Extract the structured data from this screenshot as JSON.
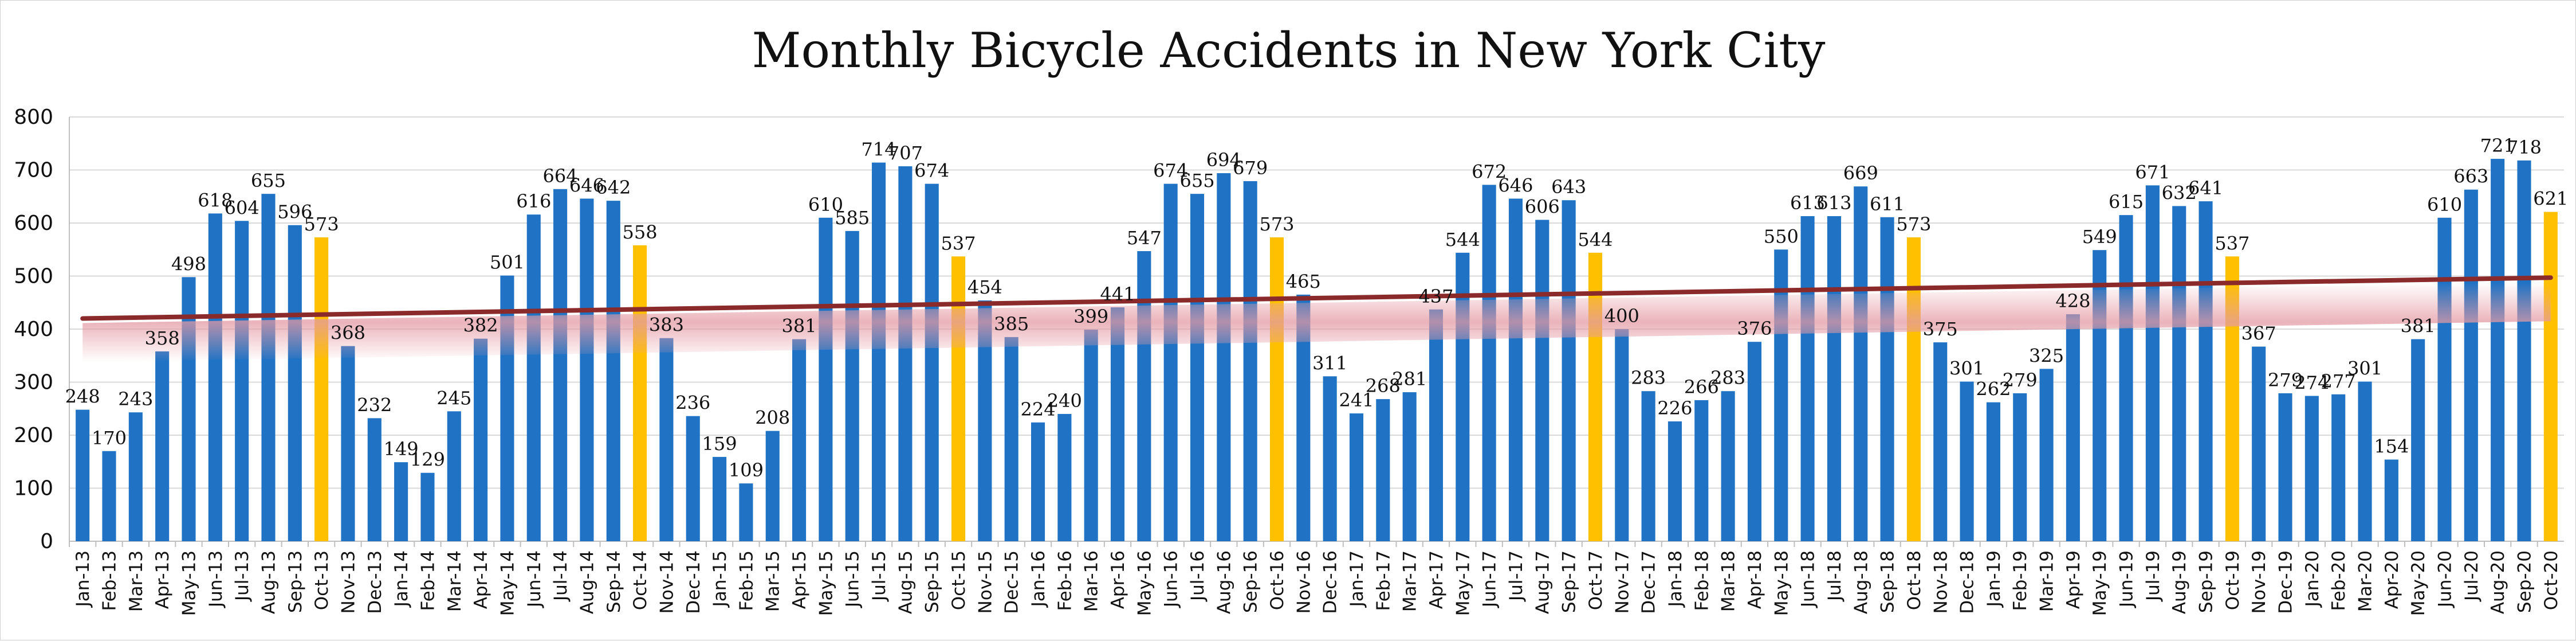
{
  "chart_data": {
    "type": "bar",
    "title": "Monthly Bicycle Accidents in New York City",
    "xlabel": "",
    "ylabel": "",
    "ylim": [
      0,
      800
    ],
    "yticks": [
      0,
      100,
      200,
      300,
      400,
      500,
      600,
      700,
      800
    ],
    "grid": true,
    "legend": "none",
    "colors": {
      "bar": "#1f72c4",
      "highlight": "#ffc000",
      "trend": "#8b2a2a",
      "grid": "#d9d9d9"
    },
    "categories": [
      "Jan-13",
      "Feb-13",
      "Mar-13",
      "Apr-13",
      "May-13",
      "Jun-13",
      "Jul-13",
      "Aug-13",
      "Sep-13",
      "Oct-13",
      "Nov-13",
      "Dec-13",
      "Jan-14",
      "Feb-14",
      "Mar-14",
      "Apr-14",
      "May-14",
      "Jun-14",
      "Jul-14",
      "Aug-14",
      "Sep-14",
      "Oct-14",
      "Nov-14",
      "Dec-14",
      "Jan-15",
      "Feb-15",
      "Mar-15",
      "Apr-15",
      "May-15",
      "Jun-15",
      "Jul-15",
      "Aug-15",
      "Sep-15",
      "Oct-15",
      "Nov-15",
      "Dec-15",
      "Jan-16",
      "Feb-16",
      "Mar-16",
      "Apr-16",
      "May-16",
      "Jun-16",
      "Jul-16",
      "Aug-16",
      "Sep-16",
      "Oct-16",
      "Nov-16",
      "Dec-16",
      "Jan-17",
      "Feb-17",
      "Mar-17",
      "Apr-17",
      "May-17",
      "Jun-17",
      "Jul-17",
      "Aug-17",
      "Sep-17",
      "Oct-17",
      "Nov-17",
      "Dec-17",
      "Jan-18",
      "Feb-18",
      "Mar-18",
      "Apr-18",
      "May-18",
      "Jun-18",
      "Jul-18",
      "Aug-18",
      "Sep-18",
      "Oct-18",
      "Nov-18",
      "Dec-18",
      "Jan-19",
      "Feb-19",
      "Mar-19",
      "Apr-19",
      "May-19",
      "Jun-19",
      "Jul-19",
      "Aug-19",
      "Sep-19",
      "Oct-19",
      "Nov-19",
      "Dec-19",
      "Jan-20",
      "Feb-20",
      "Mar-20",
      "Apr-20",
      "May-20",
      "Jun-20",
      "Jul-20",
      "Aug-20",
      "Sep-20",
      "Oct-20"
    ],
    "values": [
      248,
      170,
      243,
      358,
      498,
      618,
      604,
      655,
      596,
      573,
      368,
      232,
      149,
      129,
      245,
      382,
      501,
      616,
      664,
      646,
      642,
      558,
      383,
      236,
      159,
      109,
      208,
      381,
      610,
      585,
      714,
      707,
      674,
      537,
      454,
      385,
      224,
      240,
      399,
      441,
      547,
      674,
      655,
      694,
      679,
      573,
      465,
      311,
      241,
      268,
      281,
      437,
      544,
      672,
      646,
      606,
      643,
      544,
      400,
      283,
      226,
      266,
      283,
      376,
      550,
      613,
      613,
      669,
      611,
      573,
      375,
      301,
      262,
      279,
      325,
      428,
      549,
      615,
      671,
      632,
      641,
      537,
      367,
      279,
      274,
      277,
      301,
      154,
      381,
      610,
      663,
      721,
      718,
      621
    ],
    "highlight_categories": [
      "Oct-13",
      "Oct-14",
      "Oct-15",
      "Oct-16",
      "Oct-17",
      "Oct-18",
      "Oct-19",
      "Oct-20"
    ],
    "trendline": {
      "type": "linear",
      "start": 420,
      "end": 497
    }
  }
}
